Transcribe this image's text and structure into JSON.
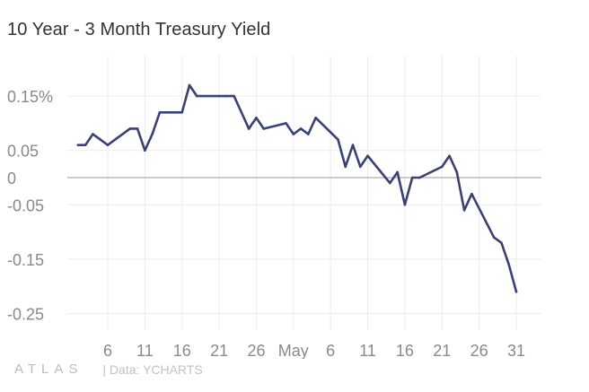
{
  "title": "10 Year - 3 Month Treasury Yield",
  "footer": {
    "logo": "ATLAS",
    "source": "| Data: YCHARTS"
  },
  "colors": {
    "line": "#3b4173",
    "grid": "#ececec",
    "zero_line": "#9a9a9a",
    "tick_text": "#8a8a8a"
  },
  "chart_data": {
    "type": "line",
    "title": "10 Year - 3 Month Treasury Yield",
    "xlabel": "",
    "ylabel": "",
    "grid": true,
    "ylim": [
      -0.27,
      0.16
    ],
    "xlim": [
      "2019-04-01",
      "2019-06-03"
    ],
    "y_ticks": [
      {
        "value": 0.15,
        "label": "0.15%"
      },
      {
        "value": 0.05,
        "label": "0.05"
      },
      {
        "value": 0,
        "label": "0"
      },
      {
        "value": -0.05,
        "label": "-0.05"
      },
      {
        "value": -0.15,
        "label": "-0.15"
      },
      {
        "value": -0.25,
        "label": "-0.25"
      }
    ],
    "x_ticks": [
      {
        "date": "2019-04-06",
        "label": "6"
      },
      {
        "date": "2019-04-11",
        "label": "11"
      },
      {
        "date": "2019-04-16",
        "label": "16"
      },
      {
        "date": "2019-04-21",
        "label": "21"
      },
      {
        "date": "2019-04-26",
        "label": "26"
      },
      {
        "date": "2019-05-01",
        "label": "May"
      },
      {
        "date": "2019-05-06",
        "label": "6"
      },
      {
        "date": "2019-05-11",
        "label": "11"
      },
      {
        "date": "2019-05-16",
        "label": "16"
      },
      {
        "date": "2019-05-21",
        "label": "21"
      },
      {
        "date": "2019-05-26",
        "label": "26"
      },
      {
        "date": "2019-05-31",
        "label": "31"
      }
    ],
    "series": [
      {
        "points": [
          {
            "x": "2019-04-02",
            "y": 0.06
          },
          {
            "x": "2019-04-03",
            "y": 0.06
          },
          {
            "x": "2019-04-04",
            "y": 0.08
          },
          {
            "x": "2019-04-05",
            "y": 0.07
          },
          {
            "x": "2019-04-06",
            "y": 0.06
          },
          {
            "x": "2019-04-09",
            "y": 0.09
          },
          {
            "x": "2019-04-10",
            "y": 0.09
          },
          {
            "x": "2019-04-11",
            "y": 0.05
          },
          {
            "x": "2019-04-12",
            "y": 0.08
          },
          {
            "x": "2019-04-13",
            "y": 0.12
          },
          {
            "x": "2019-04-15",
            "y": 0.12
          },
          {
            "x": "2019-04-16",
            "y": 0.12
          },
          {
            "x": "2019-04-17",
            "y": 0.17
          },
          {
            "x": "2019-04-18",
            "y": 0.15
          },
          {
            "x": "2019-04-22",
            "y": 0.15
          },
          {
            "x": "2019-04-23",
            "y": 0.15
          },
          {
            "x": "2019-04-25",
            "y": 0.09
          },
          {
            "x": "2019-04-26",
            "y": 0.11
          },
          {
            "x": "2019-04-27",
            "y": 0.09
          },
          {
            "x": "2019-04-30",
            "y": 0.1
          },
          {
            "x": "2019-05-01",
            "y": 0.08
          },
          {
            "x": "2019-05-02",
            "y": 0.09
          },
          {
            "x": "2019-05-03",
            "y": 0.08
          },
          {
            "x": "2019-05-04",
            "y": 0.11
          },
          {
            "x": "2019-05-07",
            "y": 0.07
          },
          {
            "x": "2019-05-08",
            "y": 0.02
          },
          {
            "x": "2019-05-09",
            "y": 0.06
          },
          {
            "x": "2019-05-10",
            "y": 0.02
          },
          {
            "x": "2019-05-11",
            "y": 0.04
          },
          {
            "x": "2019-05-14",
            "y": -0.01
          },
          {
            "x": "2019-05-15",
            "y": 0.01
          },
          {
            "x": "2019-05-16",
            "y": -0.05
          },
          {
            "x": "2019-05-17",
            "y": 0.0
          },
          {
            "x": "2019-05-18",
            "y": 0.0
          },
          {
            "x": "2019-05-21",
            "y": 0.02
          },
          {
            "x": "2019-05-22",
            "y": 0.04
          },
          {
            "x": "2019-05-23",
            "y": 0.01
          },
          {
            "x": "2019-05-24",
            "y": -0.06
          },
          {
            "x": "2019-05-25",
            "y": -0.03
          },
          {
            "x": "2019-05-28",
            "y": -0.11
          },
          {
            "x": "2019-05-29",
            "y": -0.12
          },
          {
            "x": "2019-05-30",
            "y": -0.16
          },
          {
            "x": "2019-05-31",
            "y": -0.21
          }
        ]
      }
    ]
  }
}
